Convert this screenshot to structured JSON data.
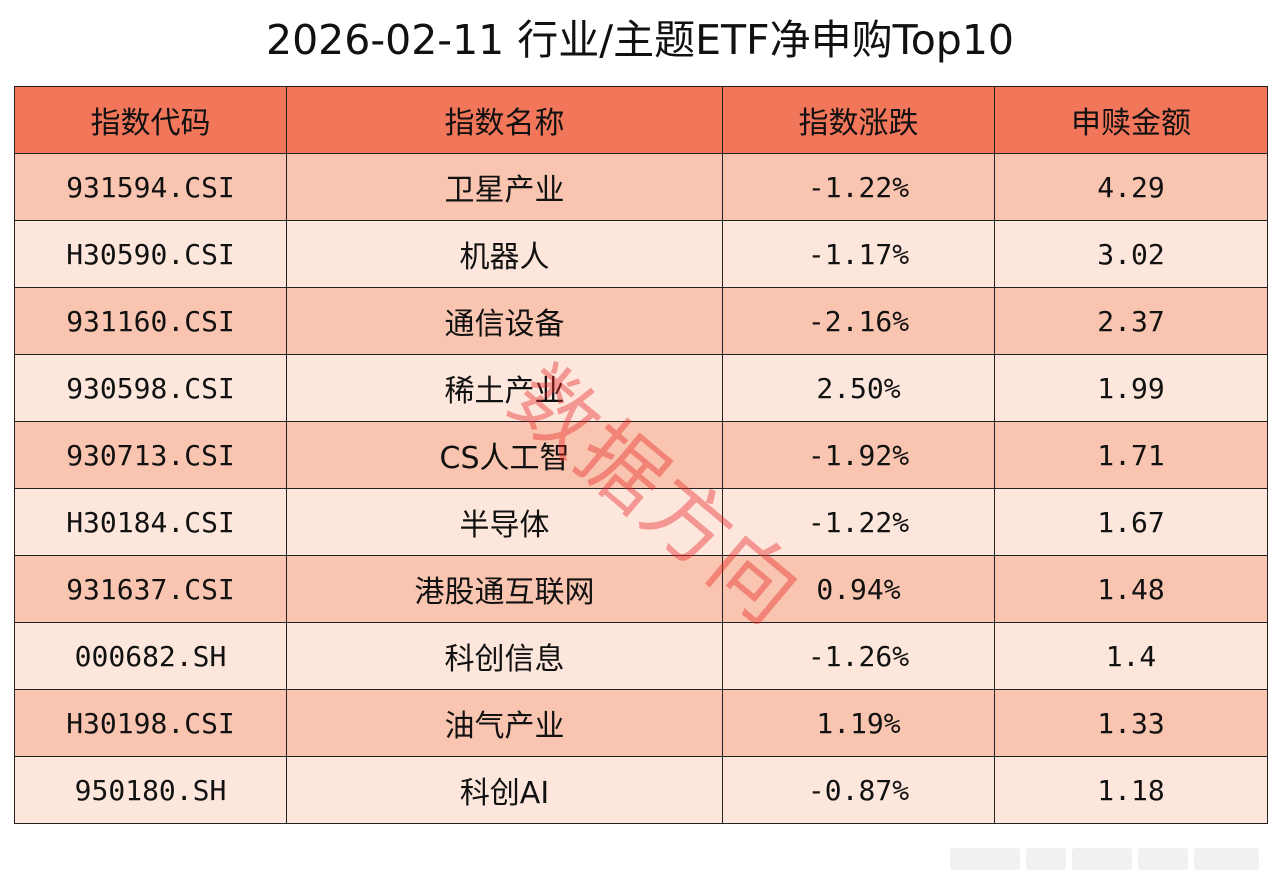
{
  "title": "2026-02-11 行业/主题ETF净申购Top10",
  "table": {
    "headers": [
      "指数代码",
      "指数名称",
      "指数涨跌",
      "申赎金额"
    ],
    "rows": [
      [
        "931594.CSI",
        "卫星产业",
        "-1.22%",
        "4.29"
      ],
      [
        "H30590.CSI",
        "机器人",
        "-1.17%",
        "3.02"
      ],
      [
        "931160.CSI",
        "通信设备",
        "-2.16%",
        "2.37"
      ],
      [
        "930598.CSI",
        "稀土产业",
        "2.50%",
        "1.99"
      ],
      [
        "930713.CSI",
        "CS人工智",
        "-1.92%",
        "1.71"
      ],
      [
        "H30184.CSI",
        "半导体",
        "-1.22%",
        "1.67"
      ],
      [
        "931637.CSI",
        "港股通互联网",
        "0.94%",
        "1.48"
      ],
      [
        "000682.SH",
        "科创信息",
        "-1.26%",
        "1.4"
      ],
      [
        "H30198.CSI",
        "油气产业",
        "1.19%",
        "1.33"
      ],
      [
        "950180.SH",
        "科创AI",
        "-0.87%",
        "1.18"
      ]
    ]
  },
  "watermark": "数据方向",
  "colors": {
    "header_bg": "#f2775a",
    "row_odd_bg": "#f9c5b0",
    "row_even_bg": "#fde6dc",
    "watermark": "#e62828"
  }
}
